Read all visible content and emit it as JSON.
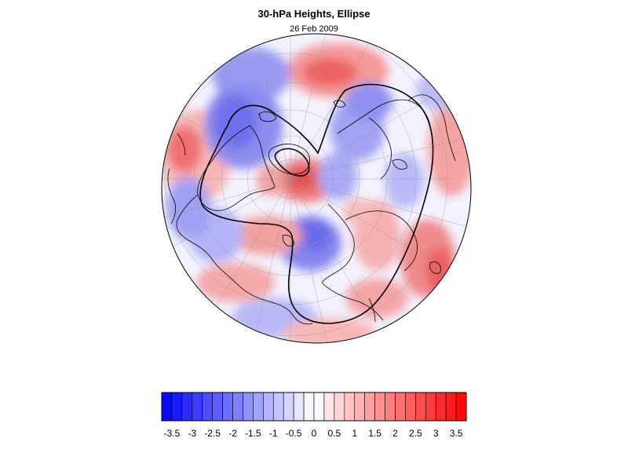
{
  "title": "30-hPa Heights, Ellipse",
  "subtitle": "26 Feb 2009",
  "map": {
    "projection": "polar-stereographic-north",
    "field": "30-hPa height anomaly",
    "contour": "ellipse",
    "graticule": true
  },
  "colorbar": {
    "min": -3.75,
    "max": 3.75,
    "step": 0.25,
    "low_color": "#0000ff",
    "mid_color": "#ffffff",
    "high_color": "#ff0000",
    "tick_labels": [
      "-3.5",
      "-3",
      "-2.5",
      "-2",
      "-1.5",
      "-1",
      "-0.5",
      "0",
      "0.5",
      "1",
      "1.5",
      "2",
      "2.5",
      "3",
      "3.5"
    ],
    "tick_values": [
      -3.5,
      -3,
      -2.5,
      -2,
      -1.5,
      -1,
      -0.5,
      0,
      0.5,
      1,
      1.5,
      2,
      2.5,
      3,
      3.5
    ]
  }
}
